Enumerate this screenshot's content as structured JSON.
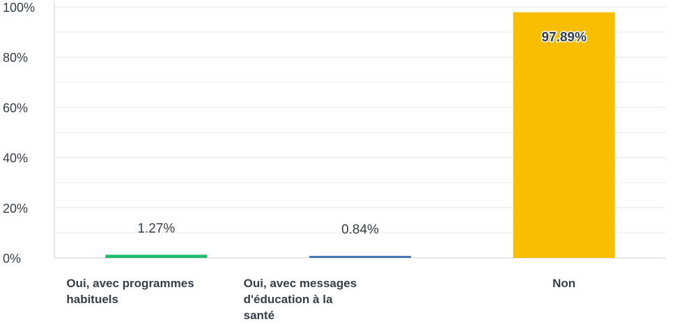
{
  "chart_data": {
    "type": "bar",
    "categories": [
      [
        "Oui, avec programmes",
        "habituels"
      ],
      [
        "Oui, avec messages",
        "d'éducation à la",
        "santé"
      ],
      [
        "Non"
      ]
    ],
    "values": [
      1.27,
      0.84,
      97.89
    ],
    "data_labels": [
      "1.27%",
      "0.84%",
      "97.89%"
    ],
    "colors": [
      "#1fbd6b",
      "#4a78b4",
      "#f9be00"
    ],
    "ylim": [
      0,
      100
    ],
    "y_ticks": [
      {
        "value": 0,
        "label": "0%"
      },
      {
        "value": 20,
        "label": "20%"
      },
      {
        "value": 40,
        "label": "40%"
      },
      {
        "value": 60,
        "label": "60%"
      },
      {
        "value": 80,
        "label": "80%"
      },
      {
        "value": 100,
        "label": "100%"
      }
    ],
    "minor_gridlines": true,
    "title": "",
    "xlabel": "",
    "ylabel": "",
    "legend": "none"
  }
}
